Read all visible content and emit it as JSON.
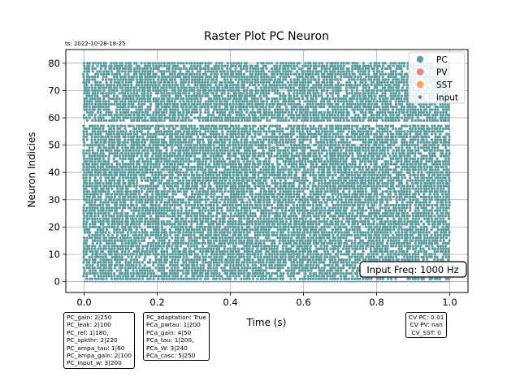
{
  "timestamp": "ts: 2022-10-28-18-25",
  "chart_data": {
    "type": "scatter",
    "title": "Raster Plot PC Neuron",
    "xlabel": "Time (s)",
    "ylabel": "Neuron Indicies",
    "xlim": [
      -0.05,
      1.05
    ],
    "ylim": [
      -4,
      85
    ],
    "xticks": [
      "0.0",
      "0.2",
      "0.4",
      "0.6",
      "0.8",
      "1.0"
    ],
    "yticks": [
      "0",
      "10",
      "20",
      "30",
      "40",
      "50",
      "60",
      "70",
      "80"
    ],
    "grid": true,
    "neurons": {
      "first_index": 1,
      "last_index": 80,
      "silent_index": 58
    },
    "spike_time_range": [
      0.0,
      1.0
    ],
    "input_row": {
      "index": 0,
      "time_range": [
        0.0,
        1.0
      ]
    },
    "legend": {
      "placement": "top-right",
      "entries": [
        {
          "label": "PC",
          "color": "#5F9EA0",
          "marker": "large"
        },
        {
          "label": "PV",
          "color": "#F08080",
          "marker": "large"
        },
        {
          "label": "SST",
          "color": "#F4A460",
          "marker": "large"
        },
        {
          "label": "input",
          "color": "#708090",
          "marker": "small"
        }
      ]
    },
    "annotation": "Input Freq: 1000 Hz"
  },
  "param_boxes": {
    "pc": [
      "PC_gain: 2|250",
      "PC_leak: 2|100",
      "PC_ref: 1|180,",
      "PC_spkthr: 2|220",
      "PC_ampa_tau: 1|60",
      "PC_ampa_gain: 2|100",
      "PC_input_w: 3|200"
    ],
    "pca": [
      "PC_adaptation: True",
      "PCa_pwtau: 1|200",
      "PCa_gain: 4|50",
      "PCa_tau: 1|200,",
      "PCa_W: 3|240",
      "PCa_casc: 5|250"
    ],
    "cv": [
      "CV PC: 0.01",
      "CV PV: nan",
      "CV_SST: 0"
    ]
  }
}
